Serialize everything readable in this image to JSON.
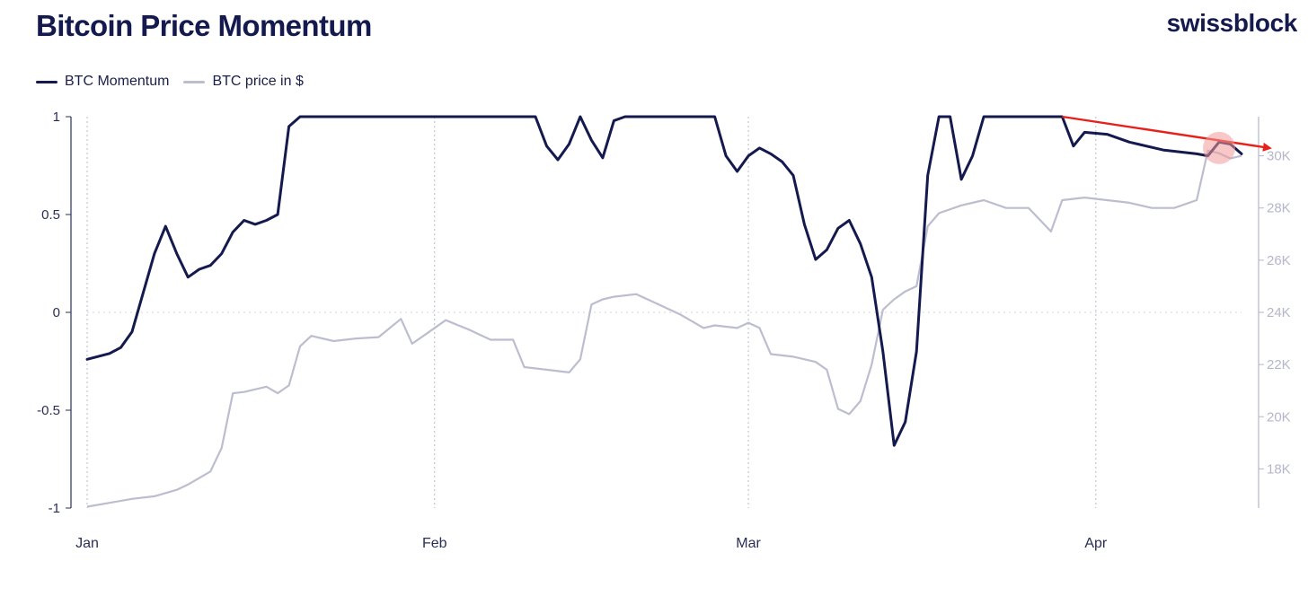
{
  "header": {
    "title": "Bitcoin Price Momentum",
    "brand": "swissblock"
  },
  "colors": {
    "momentum": "#141a4e",
    "price": "#bcbdcf",
    "arrow": "#e8201a",
    "highlight": "#f29a9a"
  },
  "chart_data": {
    "type": "line",
    "title": "Bitcoin Price Momentum",
    "legend": {
      "placement": "top-left",
      "entries": [
        "BTC Momentum",
        "BTC price in $"
      ]
    },
    "x_axis": {
      "type": "date",
      "start": "2023-01-01",
      "end": "2023-04-14",
      "ticks": [
        {
          "date": "2023-01-01",
          "label": "Jan"
        },
        {
          "date": "2023-02-01",
          "label": "Feb"
        },
        {
          "date": "2023-03-01",
          "label": "Mar"
        },
        {
          "date": "2023-04-01",
          "label": "Apr"
        }
      ]
    },
    "y_left": {
      "ylim": [
        -1,
        1
      ],
      "ticks": [
        1,
        0.5,
        0,
        -0.5,
        -1
      ],
      "tick_labels": [
        "1",
        "0.5",
        "0",
        "-0.5",
        "-1"
      ]
    },
    "y_right": {
      "ylim": [
        16500,
        31500
      ],
      "ticks": [
        30000,
        28000,
        26000,
        24000,
        22000,
        20000,
        18000
      ],
      "tick_labels": [
        "30K",
        "28K",
        "26K",
        "24K",
        "22K",
        "20K",
        "18K"
      ]
    },
    "grid": {
      "vertical_dotted_at_month_starts": true,
      "zero_line_dotted": true
    },
    "series": [
      {
        "name": "BTC Momentum",
        "axis": "left",
        "points": [
          [
            "2023-01-01",
            -0.24
          ],
          [
            "2023-01-03",
            -0.21
          ],
          [
            "2023-01-04",
            -0.18
          ],
          [
            "2023-01-05",
            -0.1
          ],
          [
            "2023-01-06",
            0.1
          ],
          [
            "2023-01-07",
            0.3
          ],
          [
            "2023-01-08",
            0.44
          ],
          [
            "2023-01-09",
            0.3
          ],
          [
            "2023-01-10",
            0.18
          ],
          [
            "2023-01-11",
            0.22
          ],
          [
            "2023-01-12",
            0.24
          ],
          [
            "2023-01-13",
            0.3
          ],
          [
            "2023-01-14",
            0.41
          ],
          [
            "2023-01-15",
            0.47
          ],
          [
            "2023-01-16",
            0.45
          ],
          [
            "2023-01-17",
            0.47
          ],
          [
            "2023-01-18",
            0.5
          ],
          [
            "2023-01-19",
            0.95
          ],
          [
            "2023-01-20",
            1.0
          ],
          [
            "2023-02-10",
            1.0
          ],
          [
            "2023-02-11",
            0.85
          ],
          [
            "2023-02-12",
            0.78
          ],
          [
            "2023-02-13",
            0.86
          ],
          [
            "2023-02-14",
            1.0
          ],
          [
            "2023-02-15",
            0.88
          ],
          [
            "2023-02-16",
            0.79
          ],
          [
            "2023-02-17",
            0.98
          ],
          [
            "2023-02-18",
            1.0
          ],
          [
            "2023-02-26",
            1.0
          ],
          [
            "2023-02-27",
            0.8
          ],
          [
            "2023-02-28",
            0.72
          ],
          [
            "2023-03-01",
            0.8
          ],
          [
            "2023-03-02",
            0.84
          ],
          [
            "2023-03-03",
            0.81
          ],
          [
            "2023-03-04",
            0.77
          ],
          [
            "2023-03-05",
            0.7
          ],
          [
            "2023-03-06",
            0.45
          ],
          [
            "2023-03-07",
            0.27
          ],
          [
            "2023-03-08",
            0.32
          ],
          [
            "2023-03-09",
            0.43
          ],
          [
            "2023-03-10",
            0.47
          ],
          [
            "2023-03-11",
            0.35
          ],
          [
            "2023-03-12",
            0.18
          ],
          [
            "2023-03-13",
            -0.2
          ],
          [
            "2023-03-14",
            -0.68
          ],
          [
            "2023-03-15",
            -0.56
          ],
          [
            "2023-03-16",
            -0.2
          ],
          [
            "2023-03-17",
            0.7
          ],
          [
            "2023-03-18",
            1.0
          ],
          [
            "2023-03-19",
            1.0
          ],
          [
            "2023-03-20",
            0.68
          ],
          [
            "2023-03-21",
            0.8
          ],
          [
            "2023-03-22",
            1.0
          ],
          [
            "2023-03-29",
            1.0
          ],
          [
            "2023-03-30",
            0.85
          ],
          [
            "2023-03-31",
            0.92
          ],
          [
            "2023-04-02",
            0.91
          ],
          [
            "2023-04-04",
            0.87
          ],
          [
            "2023-04-07",
            0.83
          ],
          [
            "2023-04-10",
            0.81
          ],
          [
            "2023-04-11",
            0.8
          ],
          [
            "2023-04-12",
            0.87
          ],
          [
            "2023-04-13",
            0.86
          ],
          [
            "2023-04-14",
            0.81
          ]
        ]
      },
      {
        "name": "BTC price in $",
        "axis": "right",
        "points": [
          [
            "2023-01-01",
            16550
          ],
          [
            "2023-01-03",
            16700
          ],
          [
            "2023-01-05",
            16850
          ],
          [
            "2023-01-07",
            16950
          ],
          [
            "2023-01-09",
            17200
          ],
          [
            "2023-01-10",
            17400
          ],
          [
            "2023-01-12",
            17900
          ],
          [
            "2023-01-13",
            18800
          ],
          [
            "2023-01-14",
            20900
          ],
          [
            "2023-01-15",
            20950
          ],
          [
            "2023-01-17",
            21150
          ],
          [
            "2023-01-18",
            20900
          ],
          [
            "2023-01-19",
            21200
          ],
          [
            "2023-01-20",
            22700
          ],
          [
            "2023-01-21",
            23100
          ],
          [
            "2023-01-23",
            22900
          ],
          [
            "2023-01-25",
            23000
          ],
          [
            "2023-01-27",
            23050
          ],
          [
            "2023-01-29",
            23750
          ],
          [
            "2023-01-30",
            22800
          ],
          [
            "2023-01-31",
            23100
          ],
          [
            "2023-02-02",
            23700
          ],
          [
            "2023-02-04",
            23350
          ],
          [
            "2023-02-06",
            22950
          ],
          [
            "2023-02-08",
            22950
          ],
          [
            "2023-02-09",
            21900
          ],
          [
            "2023-02-11",
            21800
          ],
          [
            "2023-02-13",
            21700
          ],
          [
            "2023-02-14",
            22200
          ],
          [
            "2023-02-15",
            24300
          ],
          [
            "2023-02-16",
            24500
          ],
          [
            "2023-02-17",
            24600
          ],
          [
            "2023-02-19",
            24700
          ],
          [
            "2023-02-21",
            24300
          ],
          [
            "2023-02-23",
            23900
          ],
          [
            "2023-02-25",
            23400
          ],
          [
            "2023-02-26",
            23500
          ],
          [
            "2023-02-28",
            23400
          ],
          [
            "2023-03-01",
            23600
          ],
          [
            "2023-03-02",
            23400
          ],
          [
            "2023-03-03",
            22400
          ],
          [
            "2023-03-05",
            22300
          ],
          [
            "2023-03-07",
            22100
          ],
          [
            "2023-03-08",
            21800
          ],
          [
            "2023-03-09",
            20300
          ],
          [
            "2023-03-10",
            20100
          ],
          [
            "2023-03-11",
            20600
          ],
          [
            "2023-03-12",
            22000
          ],
          [
            "2023-03-13",
            24100
          ],
          [
            "2023-03-14",
            24500
          ],
          [
            "2023-03-15",
            24800
          ],
          [
            "2023-03-16",
            25000
          ],
          [
            "2023-03-17",
            27300
          ],
          [
            "2023-03-18",
            27800
          ],
          [
            "2023-03-20",
            28100
          ],
          [
            "2023-03-22",
            28300
          ],
          [
            "2023-03-24",
            28000
          ],
          [
            "2023-03-26",
            28000
          ],
          [
            "2023-03-28",
            27100
          ],
          [
            "2023-03-29",
            28300
          ],
          [
            "2023-03-31",
            28400
          ],
          [
            "2023-04-02",
            28300
          ],
          [
            "2023-04-04",
            28200
          ],
          [
            "2023-04-06",
            28000
          ],
          [
            "2023-04-08",
            28000
          ],
          [
            "2023-04-10",
            28300
          ],
          [
            "2023-04-11",
            30200
          ],
          [
            "2023-04-12",
            30100
          ],
          [
            "2023-04-13",
            29900
          ],
          [
            "2023-04-14",
            30000
          ]
        ]
      }
    ],
    "annotations": [
      {
        "type": "trend-arrow",
        "axis": "left",
        "from": [
          "2023-03-29",
          1.0
        ],
        "to": [
          "2023-04-16",
          0.84
        ]
      },
      {
        "type": "highlight-circle",
        "axis": "right",
        "at": [
          "2023-04-12",
          30300
        ]
      }
    ]
  }
}
